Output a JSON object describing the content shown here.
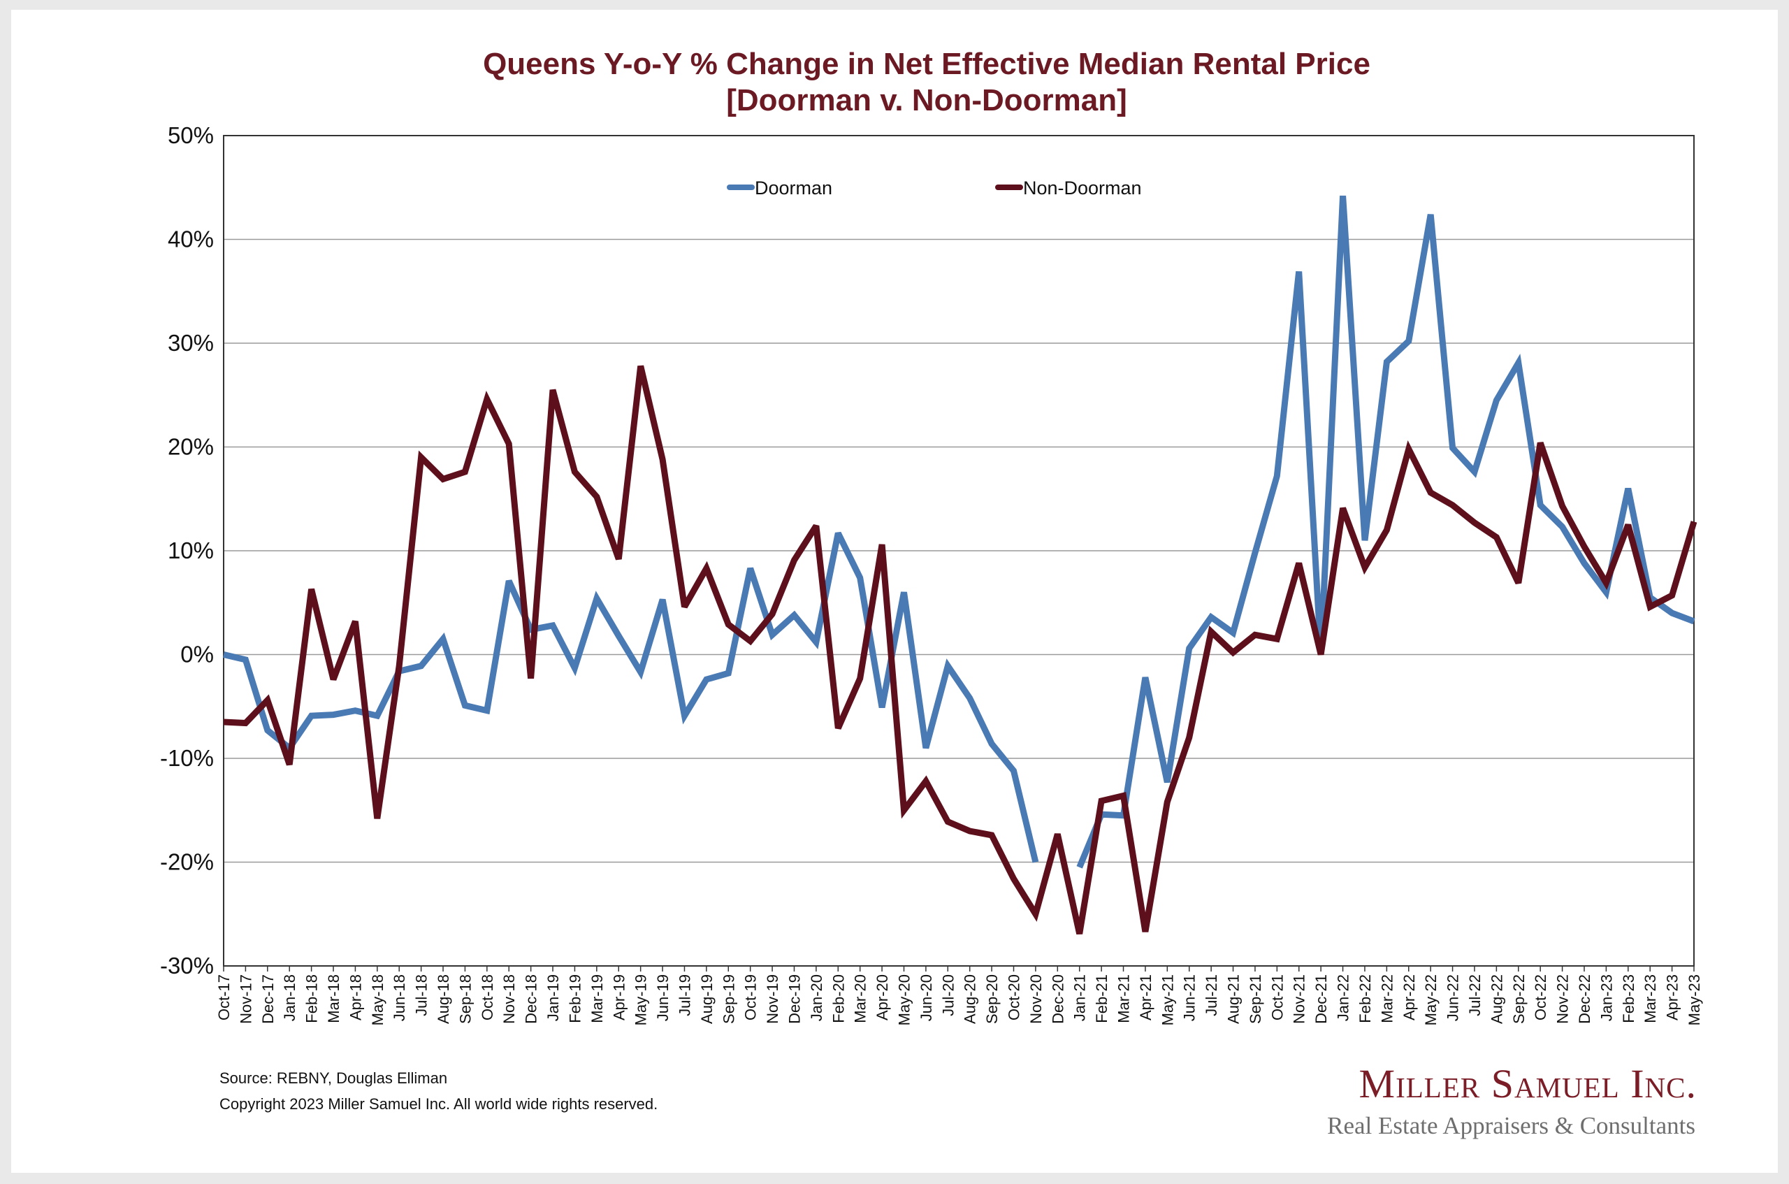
{
  "colors": {
    "doorman": "#4a7ab3",
    "non_doorman": "#5e0f1c",
    "title": "#6b1a24",
    "brand": "#7a1d27",
    "grid": "#9a9a9a"
  },
  "footer": {
    "source": "Source: REBNY, Douglas Elliman",
    "copyright": "Copyright 2023 Miller Samuel Inc.  All world wide rights reserved."
  },
  "brand": {
    "name": "Miller Samuel Inc.",
    "tagline": "Real Estate Appraisers & Consultants"
  },
  "chart_data": {
    "type": "line",
    "title": "Queens Y-o-Y % Change in Net Effective Median Rental Price",
    "subtitle": "[Doorman v. Non-Doorman]",
    "xlabel": "",
    "ylabel": "",
    "ylim": [
      -30,
      50
    ],
    "yticks": [
      -30,
      -20,
      -10,
      0,
      10,
      20,
      30,
      40,
      50
    ],
    "ytick_labels": [
      "-30%",
      "-20%",
      "-10%",
      "0%",
      "10%",
      "20%",
      "30%",
      "40%",
      "50%"
    ],
    "grid": true,
    "legend_position": "top-center",
    "categories": [
      "Oct-17",
      "Nov-17",
      "Dec-17",
      "Jan-18",
      "Feb-18",
      "Mar-18",
      "Apr-18",
      "May-18",
      "Jun-18",
      "Jul-18",
      "Aug-18",
      "Sep-18",
      "Oct-18",
      "Nov-18",
      "Dec-18",
      "Jan-19",
      "Feb-19",
      "Mar-19",
      "Apr-19",
      "May-19",
      "Jun-19",
      "Jul-19",
      "Aug-19",
      "Sep-19",
      "Oct-19",
      "Nov-19",
      "Dec-19",
      "Jan-20",
      "Feb-20",
      "Mar-20",
      "Apr-20",
      "May-20",
      "Jun-20",
      "Jul-20",
      "Aug-20",
      "Sep-20",
      "Oct-20",
      "Nov-20",
      "Dec-20",
      "Jan-21",
      "Feb-21",
      "Mar-21",
      "Apr-21",
      "May-21",
      "Jun-21",
      "Jul-21",
      "Aug-21",
      "Sep-21",
      "Oct-21",
      "Nov-21",
      "Dec-21",
      "Jan-22",
      "Feb-22",
      "Mar-22",
      "Apr-22",
      "May-22",
      "Jun-22",
      "Jul-22",
      "Aug-22",
      "Sep-22",
      "Oct-22",
      "Nov-22",
      "Dec-22",
      "Jan-23",
      "Feb-23",
      "Mar-23",
      "Apr-23",
      "May-23"
    ],
    "series": [
      {
        "name": "Doorman",
        "color": "#4a7ab3",
        "values": [
          0,
          -0.5,
          -7.3,
          -9,
          -5.9,
          -5.8,
          -5.4,
          -5.9,
          -1.6,
          -1.1,
          1.5,
          -4.9,
          -5.4,
          7.1,
          2.4,
          2.8,
          -1.3,
          5.4,
          1.8,
          -1.7,
          5.3,
          -5.9,
          -2.4,
          -1.8,
          8.3,
          1.9,
          3.8,
          1.2,
          11.7,
          7.4,
          -5.1,
          6,
          -9,
          -1.1,
          -4.2,
          -8.6,
          -11.2,
          -20,
          null,
          -20.5,
          -15.4,
          -15.5,
          -2.2,
          -12.3,
          0.6,
          3.6,
          2.1,
          9.8,
          17.2,
          36.9,
          0,
          44.2,
          11,
          28.2,
          30.2,
          42.4,
          19.9,
          17.6,
          24.5,
          28.1,
          14.4,
          12.3,
          8.8,
          6,
          16,
          5.5,
          4,
          3.2
        ]
      },
      {
        "name": "Non-Doorman",
        "color": "#5e0f1c",
        "values": [
          -6.5,
          -6.6,
          -4.4,
          -10.6,
          6.3,
          -2.4,
          3.2,
          -15.8,
          -1.1,
          19,
          16.9,
          17.6,
          24.6,
          20.3,
          -2.3,
          25.5,
          17.6,
          15.2,
          9.2,
          27.8,
          18.8,
          4.6,
          8.3,
          2.9,
          1.3,
          3.9,
          9.1,
          12.4,
          -7.1,
          -2.3,
          10.6,
          -15,
          -12.2,
          -16.1,
          -17,
          -17.4,
          -21.6,
          -25,
          -17.3,
          -26.9,
          -14.1,
          -13.6,
          -26.7,
          -14.2,
          -8,
          2.2,
          0.2,
          1.9,
          1.5,
          8.8,
          0,
          14.1,
          8.4,
          12,
          19.8,
          15.6,
          14.4,
          12.7,
          11.3,
          6.9,
          20.4,
          14.3,
          10.4,
          6.9,
          12.5,
          4.6,
          5.7,
          12.8
        ]
      }
    ]
  }
}
